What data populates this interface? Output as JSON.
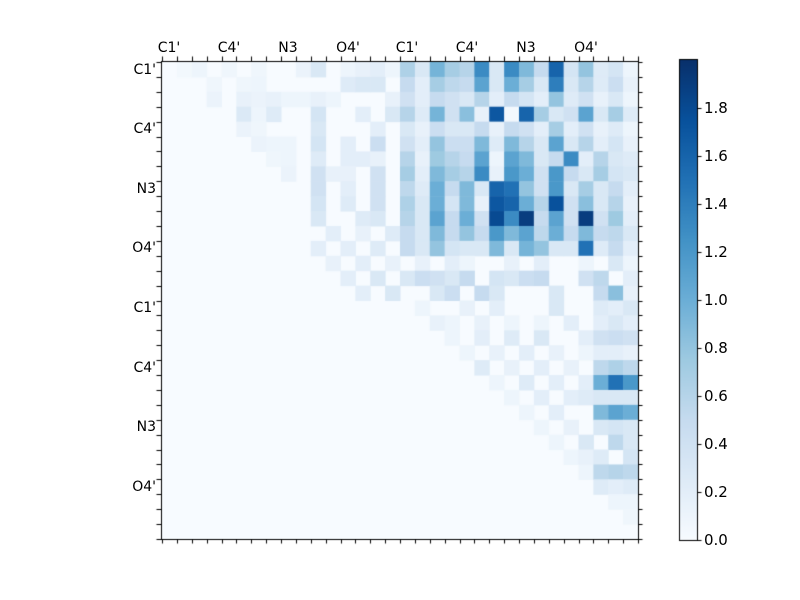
{
  "chart_data": {
    "type": "heatmap",
    "title": "",
    "xlabel": "",
    "ylabel": "",
    "matrix_size": 32,
    "label_every_n_cells": 4,
    "x_tick_labels": [
      "C1'",
      "C4'",
      "N3",
      "O4'",
      "C1'",
      "C4'",
      "N3",
      "O4'"
    ],
    "y_tick_labels": [
      "C1'",
      "C4'",
      "N3",
      "O4'",
      "C1'",
      "C4'",
      "N3",
      "O4'"
    ],
    "vmin": 0.0,
    "vmax": 2.0,
    "grid": false,
    "colormap": {
      "name": "Blues",
      "anchors": [
        {
          "t": 0.0,
          "color": "#f7fbff"
        },
        {
          "t": 0.125,
          "color": "#deebf7"
        },
        {
          "t": 0.25,
          "color": "#c6dbef"
        },
        {
          "t": 0.375,
          "color": "#9ecae1"
        },
        {
          "t": 0.5,
          "color": "#6baed6"
        },
        {
          "t": 0.625,
          "color": "#4292c6"
        },
        {
          "t": 0.75,
          "color": "#2171b5"
        },
        {
          "t": 0.875,
          "color": "#08519c"
        },
        {
          "t": 1.0,
          "color": "#08306b"
        }
      ]
    },
    "colorbar": {
      "position": "right",
      "tick_labels": [
        "0.0",
        "0.2",
        "0.4",
        "0.6",
        "0.8",
        "1.0",
        "1.2",
        "1.4",
        "1.6",
        "1.8"
      ],
      "tick_values": [
        0.0,
        0.2,
        0.4,
        0.6,
        0.8,
        1.0,
        1.2,
        1.4,
        1.6,
        1.8
      ]
    },
    "values": [
      [
        0,
        0.05,
        0.1,
        0,
        0.08,
        0,
        0.08,
        0,
        0,
        0.12,
        0.3,
        0,
        0.1,
        0.15,
        0.2,
        0.1,
        0.65,
        0.3,
        0.95,
        0.7,
        0.6,
        1.3,
        0.3,
        1.3,
        0.9,
        0.5,
        1.6,
        0.35,
        0.8,
        0.25,
        0.35,
        0.1
      ],
      [
        0,
        0,
        0,
        0.08,
        0,
        0.08,
        0.1,
        0,
        0,
        0,
        0,
        0,
        0.25,
        0.3,
        0.3,
        0,
        0.5,
        0.2,
        0.7,
        0.55,
        0.5,
        1.1,
        0.3,
        1.0,
        0.7,
        0.3,
        1.4,
        0.3,
        0.6,
        0.25,
        0.45,
        0.15
      ],
      [
        0,
        0,
        0,
        0.12,
        0,
        0.15,
        0.12,
        0.15,
        0.1,
        0.1,
        0.15,
        0.1,
        0,
        0,
        0,
        0.15,
        0.4,
        0.2,
        0.5,
        0.4,
        0.3,
        0.6,
        0.2,
        0.5,
        0.35,
        0.2,
        0.8,
        0.25,
        0.4,
        0.15,
        0.3,
        0.1
      ],
      [
        0,
        0,
        0,
        0,
        0,
        0.28,
        0.1,
        0.25,
        0,
        0,
        0.35,
        0,
        0,
        0.2,
        0,
        0.3,
        0.6,
        0.25,
        0.95,
        0.4,
        0.85,
        0.15,
        1.7,
        0.05,
        1.6,
        0.7,
        0.3,
        0.4,
        1.1,
        0.3,
        0.7,
        0.25
      ],
      [
        0,
        0,
        0,
        0,
        0,
        0.12,
        0.08,
        0,
        0,
        0,
        0.3,
        0,
        0,
        0,
        0.2,
        0,
        0.3,
        0.15,
        0.45,
        0.3,
        0.3,
        0.5,
        0.15,
        0.5,
        0.4,
        0.2,
        0.7,
        0.2,
        0.4,
        0.15,
        0.25,
        0.1
      ],
      [
        0,
        0,
        0,
        0,
        0,
        0,
        0.12,
        0.1,
        0.1,
        0,
        0.35,
        0,
        0.2,
        0,
        0.45,
        0,
        0.4,
        0.2,
        0.8,
        0.45,
        0.45,
        0.9,
        0.25,
        0.9,
        0.6,
        0.3,
        1.1,
        0.3,
        0.6,
        0.2,
        0.35,
        0.15
      ],
      [
        0,
        0,
        0,
        0,
        0,
        0,
        0,
        0.08,
        0.1,
        0,
        0.25,
        0,
        0.2,
        0.2,
        0.15,
        0,
        0.6,
        0.15,
        0.75,
        0.6,
        0.5,
        1.1,
        0.1,
        1.1,
        0.9,
        0.3,
        0.5,
        1.3,
        0.2,
        0.6,
        0.3,
        0.25
      ],
      [
        0,
        0,
        0,
        0,
        0,
        0,
        0,
        0,
        0.12,
        0,
        0.4,
        0.15,
        0.15,
        0,
        0.4,
        0,
        0.7,
        0.2,
        0.9,
        0.7,
        0.6,
        1.3,
        0.15,
        1.2,
        1.0,
        0.4,
        1.2,
        0.5,
        0.3,
        0.7,
        0.35,
        0.3
      ],
      [
        0,
        0,
        0,
        0,
        0,
        0,
        0,
        0,
        0,
        0,
        0.4,
        0,
        0.2,
        0,
        0.4,
        0,
        0.55,
        0.25,
        1.0,
        0.5,
        0.9,
        0.3,
        1.6,
        1.5,
        0.8,
        0.4,
        1.2,
        0.3,
        0.7,
        0.3,
        0.5,
        0.2
      ],
      [
        0,
        0,
        0,
        0,
        0,
        0,
        0,
        0,
        0,
        0,
        0.35,
        0,
        0.25,
        0,
        0.4,
        0,
        0.65,
        0.3,
        1.0,
        0.35,
        0.9,
        0.15,
        1.7,
        1.6,
        1.0,
        0.6,
        1.75,
        0.4,
        0.85,
        0.3,
        0.6,
        0.15
      ],
      [
        0,
        0,
        0,
        0,
        0,
        0,
        0,
        0,
        0,
        0,
        0.3,
        0,
        0,
        0.25,
        0.3,
        0,
        0.6,
        0.3,
        1.1,
        0.5,
        1.0,
        0.4,
        1.8,
        1.3,
        1.9,
        0.5,
        1.1,
        0.4,
        1.9,
        0.4,
        0.75,
        0.2
      ],
      [
        0,
        0,
        0,
        0,
        0,
        0,
        0,
        0,
        0,
        0,
        0,
        0.2,
        0,
        0.15,
        0,
        0.25,
        0.5,
        0.3,
        0.9,
        0.5,
        0.8,
        0.5,
        1.2,
        0.9,
        1.1,
        0.55,
        1.0,
        0.5,
        0.9,
        0.5,
        0.55,
        0.3
      ],
      [
        0,
        0,
        0,
        0,
        0,
        0,
        0,
        0,
        0,
        0,
        0.2,
        0,
        0.2,
        0,
        0.25,
        0,
        0.5,
        0.3,
        0.8,
        0.35,
        0.3,
        0.3,
        0.9,
        0.3,
        0.95,
        0.8,
        0.3,
        0.3,
        1.5,
        0.25,
        0.5,
        0.2
      ],
      [
        0,
        0,
        0,
        0,
        0,
        0,
        0,
        0,
        0,
        0,
        0,
        0.15,
        0,
        0.2,
        0,
        0.15,
        0,
        0.15,
        0,
        0.2,
        0.1,
        0,
        0,
        0.15,
        0,
        0.2,
        0,
        0,
        0.1,
        0,
        0.3,
        0.1
      ],
      [
        0,
        0,
        0,
        0,
        0,
        0,
        0,
        0,
        0,
        0,
        0,
        0,
        0.2,
        0,
        0.3,
        0,
        0.3,
        0.45,
        0.4,
        0.3,
        0.5,
        0,
        0.35,
        0.3,
        0.45,
        0.5,
        0,
        0,
        0.4,
        0.55,
        0,
        0.2
      ],
      [
        0,
        0,
        0,
        0,
        0,
        0,
        0,
        0,
        0,
        0,
        0,
        0,
        0,
        0.2,
        0,
        0.3,
        0,
        0,
        0.3,
        0.45,
        0,
        0.5,
        0.3,
        0,
        0,
        0,
        0.3,
        0,
        0,
        0.5,
        0.85,
        0.15
      ],
      [
        0,
        0,
        0,
        0,
        0,
        0,
        0,
        0,
        0,
        0,
        0,
        0,
        0,
        0,
        0,
        0,
        0,
        0.1,
        0,
        0,
        0.15,
        0,
        0.2,
        0,
        0,
        0,
        0.3,
        0,
        0,
        0.25,
        0.2,
        0.3
      ],
      [
        0,
        0,
        0,
        0,
        0,
        0,
        0,
        0,
        0,
        0,
        0,
        0,
        0,
        0,
        0,
        0,
        0,
        0,
        0.15,
        0.1,
        0,
        0.15,
        0,
        0.1,
        0,
        0.1,
        0,
        0.2,
        0,
        0.2,
        0.3,
        0.2
      ],
      [
        0,
        0,
        0,
        0,
        0,
        0,
        0,
        0,
        0,
        0,
        0,
        0,
        0,
        0,
        0,
        0,
        0,
        0,
        0,
        0.1,
        0,
        0.2,
        0,
        0.25,
        0,
        0.3,
        0,
        0,
        0.2,
        0.4,
        0.45,
        0.4
      ],
      [
        0,
        0,
        0,
        0,
        0,
        0,
        0,
        0,
        0,
        0,
        0,
        0,
        0,
        0,
        0,
        0,
        0,
        0,
        0,
        0,
        0.1,
        0,
        0.15,
        0,
        0.2,
        0,
        0.15,
        0,
        0.1,
        0.2,
        0.2,
        0.15
      ],
      [
        0,
        0,
        0,
        0,
        0,
        0,
        0,
        0,
        0,
        0,
        0,
        0,
        0,
        0,
        0,
        0,
        0,
        0,
        0,
        0,
        0,
        0.25,
        0,
        0.15,
        0,
        0.2,
        0,
        0.15,
        0,
        0.55,
        0.65,
        0.55
      ],
      [
        0,
        0,
        0,
        0,
        0,
        0,
        0,
        0,
        0,
        0,
        0,
        0,
        0,
        0,
        0,
        0,
        0,
        0,
        0,
        0,
        0,
        0,
        0.1,
        0,
        0.25,
        0,
        0.2,
        0,
        0.2,
        1.0,
        1.5,
        1.2
      ],
      [
        0,
        0,
        0,
        0,
        0,
        0,
        0,
        0,
        0,
        0,
        0,
        0,
        0,
        0,
        0,
        0,
        0,
        0,
        0,
        0,
        0,
        0,
        0,
        0.1,
        0,
        0.2,
        0,
        0.2,
        0.25,
        0.3,
        0.3,
        0.3
      ],
      [
        0,
        0,
        0,
        0,
        0,
        0,
        0,
        0,
        0,
        0,
        0,
        0,
        0,
        0,
        0,
        0,
        0,
        0,
        0,
        0,
        0,
        0,
        0,
        0,
        0.1,
        0,
        0.2,
        0,
        0,
        0.9,
        1.1,
        1.0
      ],
      [
        0,
        0,
        0,
        0,
        0,
        0,
        0,
        0,
        0,
        0,
        0,
        0,
        0,
        0,
        0,
        0,
        0,
        0,
        0,
        0,
        0,
        0,
        0,
        0,
        0,
        0.1,
        0,
        0.15,
        0,
        0.3,
        0.35,
        0.3
      ],
      [
        0,
        0,
        0,
        0,
        0,
        0,
        0,
        0,
        0,
        0,
        0,
        0,
        0,
        0,
        0,
        0,
        0,
        0,
        0,
        0,
        0,
        0,
        0,
        0,
        0,
        0,
        0.1,
        0,
        0.3,
        0,
        0.55,
        0.3
      ],
      [
        0,
        0,
        0,
        0,
        0,
        0,
        0,
        0,
        0,
        0,
        0,
        0,
        0,
        0,
        0,
        0,
        0,
        0,
        0,
        0,
        0,
        0,
        0,
        0,
        0,
        0,
        0,
        0.1,
        0.15,
        0.25,
        0,
        0.35
      ],
      [
        0,
        0,
        0,
        0,
        0,
        0,
        0,
        0,
        0,
        0,
        0,
        0,
        0,
        0,
        0,
        0,
        0,
        0,
        0,
        0,
        0,
        0,
        0,
        0,
        0,
        0,
        0,
        0,
        0.1,
        0.55,
        0.6,
        0.55
      ],
      [
        0,
        0,
        0,
        0,
        0,
        0,
        0,
        0,
        0,
        0,
        0,
        0,
        0,
        0,
        0,
        0,
        0,
        0,
        0,
        0,
        0,
        0,
        0,
        0,
        0,
        0,
        0,
        0,
        0,
        0.25,
        0.2,
        0.25
      ],
      [
        0,
        0,
        0,
        0,
        0,
        0,
        0,
        0,
        0,
        0,
        0,
        0,
        0,
        0,
        0,
        0,
        0,
        0,
        0,
        0,
        0,
        0,
        0,
        0,
        0,
        0,
        0,
        0,
        0,
        0,
        0.1,
        0.1
      ],
      [
        0,
        0,
        0,
        0,
        0,
        0,
        0,
        0,
        0,
        0,
        0,
        0,
        0,
        0,
        0,
        0,
        0,
        0,
        0,
        0,
        0,
        0,
        0,
        0,
        0,
        0,
        0,
        0,
        0,
        0,
        0,
        0.08
      ],
      [
        0,
        0,
        0,
        0,
        0,
        0,
        0,
        0,
        0,
        0,
        0,
        0,
        0,
        0,
        0,
        0,
        0,
        0,
        0,
        0,
        0,
        0,
        0,
        0,
        0,
        0,
        0,
        0,
        0,
        0,
        0,
        0
      ]
    ]
  }
}
